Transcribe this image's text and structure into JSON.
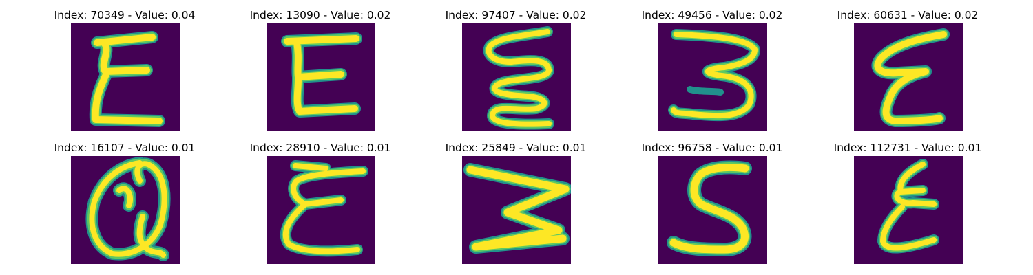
{
  "colors": {
    "background": "#440154",
    "stroke_edge": "#21918c",
    "stroke_mid": "#5ec962",
    "stroke_core": "#fde725"
  },
  "panels": [
    {
      "title": "Index: 70349 - Value: 0.04",
      "glyph": "E-styled"
    },
    {
      "title": "Index: 13090 - Value: 0.02",
      "glyph": "E"
    },
    {
      "title": "Index: 97407 - Value: 0.02",
      "glyph": "wavy-E"
    },
    {
      "title": "Index: 49456 - Value: 0.02",
      "glyph": "3"
    },
    {
      "title": "Index: 60631 - Value: 0.02",
      "glyph": "E-script"
    },
    {
      "title": "Index: 16107 - Value: 0.01",
      "glyph": "Q"
    },
    {
      "title": "Index: 28910 - Value: 0.01",
      "glyph": "E-rounded"
    },
    {
      "title": "Index: 25849 - Value: 0.01",
      "glyph": "W-rotated"
    },
    {
      "title": "Index: 96758 - Value: 0.01",
      "glyph": "S"
    },
    {
      "title": "Index: 112731 - Value: 0.01",
      "glyph": "E-script-small"
    }
  ]
}
